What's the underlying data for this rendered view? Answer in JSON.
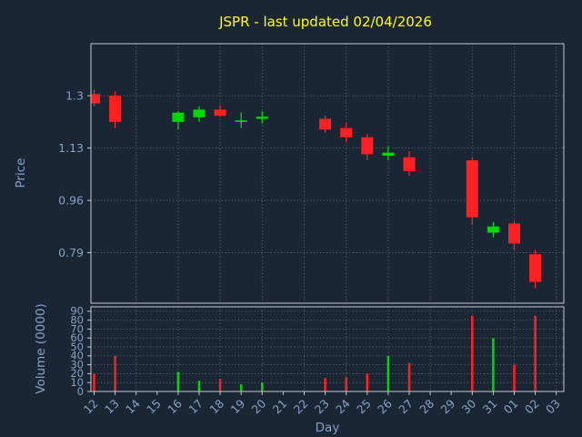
{
  "chart_data": {
    "type": "candlestick",
    "title": "JSPR - last updated 02/04/2026",
    "xlabel": "Day",
    "price_axis": {
      "label": "Price",
      "ticks": [
        1.3,
        1.13,
        0.96,
        0.79
      ],
      "ylim": [
        0.626,
        1.469
      ]
    },
    "volume_axis": {
      "label": "Volume (0000)",
      "ticks": [
        90,
        80,
        70,
        60,
        50,
        40,
        30,
        20,
        10,
        0
      ],
      "ylim": [
        0,
        95
      ]
    },
    "days": [
      "12",
      "13",
      "14",
      "15",
      "16",
      "17",
      "18",
      "19",
      "20",
      "21",
      "22",
      "23",
      "24",
      "25",
      "26",
      "27",
      "28",
      "29",
      "30",
      "31",
      "01",
      "02",
      "03"
    ],
    "candles": [
      {
        "open": 1.305,
        "high": 1.32,
        "low": 1.265,
        "close": 1.275,
        "volume": 20
      },
      {
        "open": 1.3,
        "high": 1.315,
        "low": 1.195,
        "close": 1.215,
        "volume": 40
      },
      null,
      null,
      {
        "open": 1.215,
        "high": 1.25,
        "low": 1.19,
        "close": 1.245,
        "volume": 22
      },
      {
        "open": 1.23,
        "high": 1.265,
        "low": 1.215,
        "close": 1.255,
        "volume": 12
      },
      {
        "open": 1.255,
        "high": 1.27,
        "low": 1.23,
        "close": 1.235,
        "volume": 14
      },
      {
        "open": 1.215,
        "high": 1.245,
        "low": 1.195,
        "close": 1.22,
        "volume": 8
      },
      {
        "open": 1.225,
        "high": 1.25,
        "low": 1.21,
        "close": 1.232,
        "volume": 10
      },
      null,
      null,
      {
        "open": 1.225,
        "high": 1.235,
        "low": 1.18,
        "close": 1.19,
        "volume": 15
      },
      {
        "open": 1.195,
        "high": 1.21,
        "low": 1.15,
        "close": 1.165,
        "volume": 16
      },
      {
        "open": 1.165,
        "high": 1.175,
        "low": 1.09,
        "close": 1.11,
        "volume": 20
      },
      {
        "open": 1.105,
        "high": 1.135,
        "low": 1.09,
        "close": 1.115,
        "volume": 40
      },
      {
        "open": 1.1,
        "high": 1.12,
        "low": 1.04,
        "close": 1.055,
        "volume": 32
      },
      null,
      null,
      {
        "open": 1.09,
        "high": 1.1,
        "low": 0.88,
        "close": 0.905,
        "volume": 85
      },
      {
        "open": 0.855,
        "high": 0.89,
        "low": 0.84,
        "close": 0.875,
        "volume": 60
      },
      {
        "open": 0.885,
        "high": 0.895,
        "low": 0.8,
        "close": 0.82,
        "volume": 30
      },
      {
        "open": 0.785,
        "high": 0.8,
        "low": 0.675,
        "close": 0.695,
        "volume": 85
      },
      null
    ],
    "grid": true,
    "legend": "none",
    "colors": {
      "background": "#1a2634",
      "title": "#ffff00",
      "tick_label": "#87a1c4",
      "spine": "#c2c9d0",
      "grid": "#ffffff",
      "up": "#00d800",
      "down": "#ff2121"
    }
  }
}
